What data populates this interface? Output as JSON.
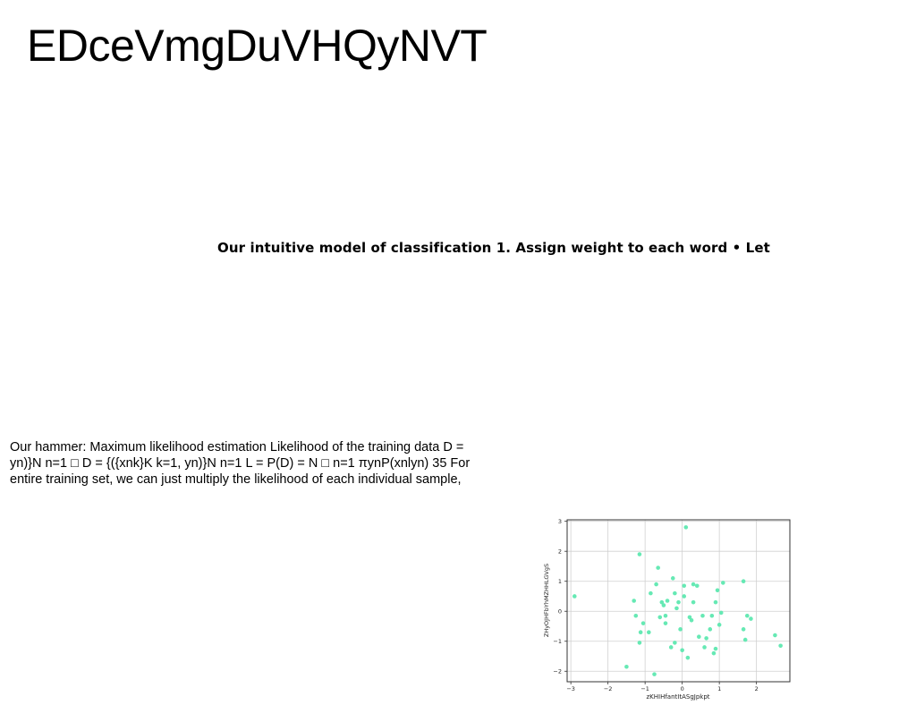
{
  "page": {
    "title": "EDceVmgDuVHQyNVT",
    "heading": "Our intuitive model of classification 1. Assign weight to each word • Let",
    "paragraph_lines": [
      "Our hammer: Maximum likelihood estimation Likelihood of the training data D =",
      "yn)}N n=1 □ D = {({xnk}K k=1, yn)}N n=1 L = P(D) = N □ n=1 πynP(xnlyn) 35 For",
      "entire training set, we can just multiply the likelihood of each individual sample,"
    ]
  },
  "colors": {
    "point": "#5ee8b0",
    "grid": "#d0d0d0",
    "axis": "#333333"
  },
  "chart_data": {
    "type": "scatter",
    "title": "",
    "xlabel": "zKHIHfantItASgJpkpt",
    "ylabel": "ZHyOJHFbYhMZHHLGVgS",
    "xlim": [
      -3.1,
      2.9
    ],
    "ylim": [
      -2.35,
      3.05
    ],
    "xticks": [
      -3,
      -2,
      -1,
      0,
      1,
      2
    ],
    "yticks": [
      -2,
      -1,
      0,
      1,
      2,
      3
    ],
    "xtick_labels": [
      "−3",
      "−2",
      "−1",
      "0",
      "1",
      "2"
    ],
    "ytick_labels": [
      "−2",
      "−1",
      "0",
      "1",
      "2",
      "3"
    ],
    "grid": true,
    "x": [
      -2.9,
      -1.5,
      -1.3,
      -1.25,
      -1.15,
      -1.15,
      -1.12,
      -1.05,
      -0.9,
      -0.85,
      -0.75,
      -0.7,
      -0.65,
      -0.6,
      -0.55,
      -0.5,
      -0.45,
      -0.45,
      -0.4,
      -0.3,
      -0.25,
      -0.2,
      -0.2,
      -0.15,
      -0.1,
      -0.05,
      0.0,
      0.05,
      0.05,
      0.1,
      0.15,
      0.2,
      0.25,
      0.3,
      0.3,
      0.4,
      0.45,
      0.55,
      0.6,
      0.65,
      0.75,
      0.8,
      0.85,
      0.9,
      0.9,
      0.95,
      1.0,
      1.05,
      1.1,
      1.65,
      1.65,
      1.7,
      1.75,
      1.85,
      2.5,
      2.65
    ],
    "y": [
      0.5,
      -1.85,
      0.35,
      -0.15,
      1.9,
      -1.05,
      -0.7,
      -0.4,
      -0.7,
      0.6,
      -2.1,
      0.9,
      1.45,
      -0.2,
      0.3,
      0.2,
      -0.4,
      -0.15,
      0.35,
      -1.2,
      1.1,
      0.6,
      -1.05,
      0.1,
      0.3,
      -0.6,
      -1.3,
      0.5,
      0.85,
      2.8,
      -1.55,
      -0.2,
      -0.3,
      0.9,
      0.3,
      0.85,
      -0.85,
      -0.15,
      -1.2,
      -0.9,
      -0.6,
      -0.15,
      -1.4,
      -1.25,
      0.3,
      0.7,
      -0.45,
      -0.05,
      0.95,
      1.0,
      -0.6,
      -0.95,
      -0.15,
      -0.25,
      -0.8,
      -1.15
    ]
  }
}
